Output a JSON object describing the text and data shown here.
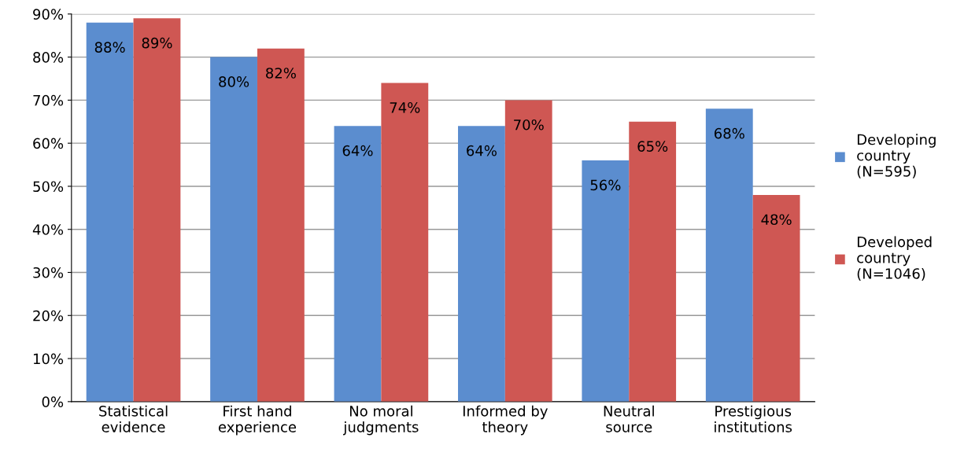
{
  "chart_data": {
    "type": "bar",
    "categories": [
      "Statistical\nevidence",
      "First hand\nexperience",
      "No moral\njudgments",
      "Informed by\ntheory",
      "Neutral\nsource",
      "Prestigious\ninstitutions"
    ],
    "series": [
      {
        "name": "Developing\ncountry\n(N=595)",
        "color": "#5b8dcf",
        "values": [
          88,
          80,
          64,
          64,
          56,
          68
        ],
        "value_labels": [
          "88%",
          "80%",
          "64%",
          "64%",
          "56%",
          "68%"
        ]
      },
      {
        "name": "Developed\ncountry\n(N=1046)",
        "color": "#cf5753",
        "values": [
          89,
          82,
          74,
          70,
          65,
          48
        ],
        "value_labels": [
          "89%",
          "82%",
          "74%",
          "70%",
          "65%",
          "48%"
        ]
      }
    ],
    "ylim": [
      0,
      90
    ],
    "yticks": [
      {
        "value": 0,
        "label": "0%"
      },
      {
        "value": 10,
        "label": "10%"
      },
      {
        "value": 20,
        "label": "20%"
      },
      {
        "value": 30,
        "label": "30%"
      },
      {
        "value": 40,
        "label": "40%"
      },
      {
        "value": 50,
        "label": "50%"
      },
      {
        "value": 60,
        "label": "60%"
      },
      {
        "value": 70,
        "label": "70%"
      },
      {
        "value": 80,
        "label": "80%"
      },
      {
        "value": 90,
        "label": "90%"
      }
    ],
    "grid": "y",
    "legend": "right"
  }
}
